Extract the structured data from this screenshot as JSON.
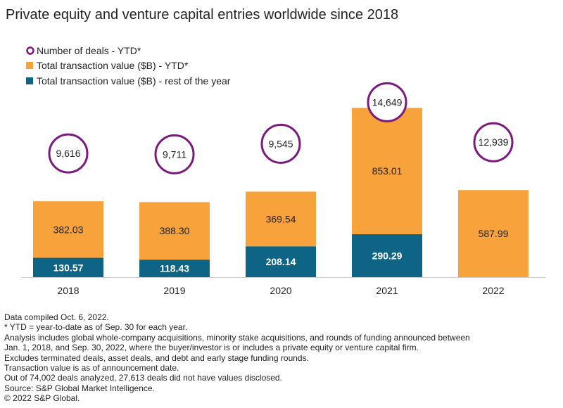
{
  "chart_data": {
    "type": "bar",
    "title": "Private equity and venture capital entries worldwide since 2018",
    "categories": [
      "2018",
      "2019",
      "2020",
      "2021",
      "2022"
    ],
    "series": [
      {
        "name": "Total transaction value ($B) - rest of the year",
        "values": [
          130.57,
          118.43,
          208.14,
          290.29,
          0
        ],
        "color": "#0e6484",
        "label_color": "#ffffff",
        "label_bold": true
      },
      {
        "name": "Total transaction value ($B) - YTD*",
        "values": [
          382.03,
          388.3,
          369.54,
          853.01,
          587.99
        ],
        "color": "#f7a23b",
        "label_color": "#222222",
        "label_bold": false
      }
    ],
    "series_labels": [
      [
        "130.57",
        "118.43",
        "208.14",
        "290.29",
        ""
      ],
      [
        "382.03",
        "388.30",
        "369.54",
        "853.01",
        "587.99"
      ]
    ],
    "deals": {
      "name": "Number of deals - YTD*",
      "values": [
        9616,
        9711,
        9545,
        14649,
        12939
      ],
      "labels": [
        "9,616",
        "9,711",
        "9,545",
        "14,649",
        "12,939"
      ],
      "color": "#7b1a7e"
    },
    "stacked": true,
    "ylim": [
      0,
      1200
    ],
    "grid": false,
    "legend_position": "top-left"
  },
  "notes": [
    "Data compiled Oct. 6, 2022.",
    "* YTD = year-to-date as of Sep. 30 for each year.",
    "Analysis includes global whole-company acquisitions, minority stake acquisitions, and rounds of funding announced between",
    "Jan. 1, 2018, and Sep. 30, 2022, where the buyer/investor is or includes a private equity or venture capital firm.",
    "Excludes terminated deals, asset deals, and debt and early stage funding rounds.",
    "Transaction value is as of announcement date.",
    "Out of 74,002  deals analyzed, 27,613 deals did not have values disclosed.",
    "Source: S&P Global Market Intelligence.",
    "© 2022 S&P Global."
  ]
}
